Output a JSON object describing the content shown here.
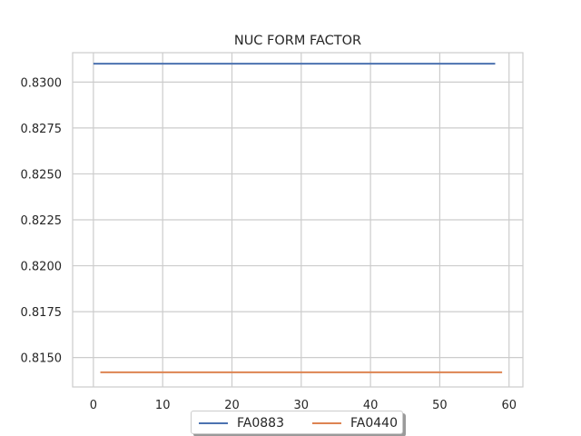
{
  "chart_data": {
    "type": "line",
    "title": "NUC FORM FACTOR",
    "xlabel": "",
    "ylabel": "",
    "xlim": [
      -3,
      62
    ],
    "ylim": [
      0.8134,
      0.8316
    ],
    "xticks": [
      0,
      10,
      20,
      30,
      40,
      50,
      60
    ],
    "xtick_labels": [
      "0",
      "10",
      "20",
      "30",
      "40",
      "50",
      "60"
    ],
    "yticks": [
      0.815,
      0.8175,
      0.82,
      0.8225,
      0.825,
      0.8275,
      0.83
    ],
    "ytick_labels": [
      "0.8150",
      "0.8175",
      "0.8200",
      "0.8225",
      "0.8250",
      "0.8275",
      "0.8300"
    ],
    "grid": true,
    "legend_placement": "bottom-center",
    "series": [
      {
        "name": "FA0883",
        "color": "#4c72b0",
        "x": [
          0,
          58
        ],
        "y": [
          0.831,
          0.831
        ]
      },
      {
        "name": "FA0440",
        "color": "#dd8452",
        "x": [
          1,
          59
        ],
        "y": [
          0.8142,
          0.8142
        ]
      }
    ]
  }
}
